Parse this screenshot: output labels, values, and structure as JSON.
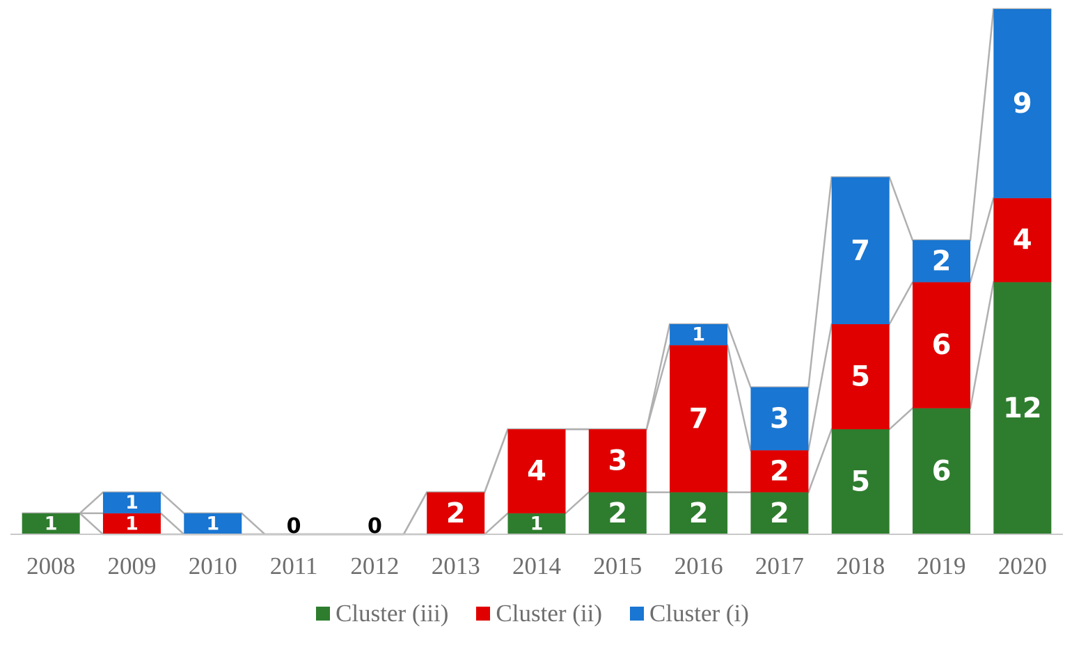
{
  "chart_data": {
    "type": "bar",
    "stacked": true,
    "categories": [
      "2008",
      "2009",
      "2010",
      "2011",
      "2012",
      "2013",
      "2014",
      "2015",
      "2016",
      "2017",
      "2018",
      "2019",
      "2020"
    ],
    "series": [
      {
        "name": "Cluster (iii)",
        "color": "#2e7d2e",
        "values": [
          1,
          0,
          0,
          0,
          0,
          0,
          1,
          2,
          2,
          2,
          5,
          6,
          12
        ]
      },
      {
        "name": "Cluster (ii)",
        "color": "#e00000",
        "values": [
          0,
          1,
          0,
          0,
          0,
          2,
          4,
          3,
          7,
          2,
          5,
          6,
          4
        ]
      },
      {
        "name": "Cluster (i)",
        "color": "#1976d2",
        "values": [
          0,
          1,
          1,
          0,
          0,
          0,
          0,
          0,
          1,
          3,
          7,
          2,
          9
        ]
      }
    ],
    "zero_labels": [
      {
        "category": "2011",
        "label": "0"
      },
      {
        "category": "2012",
        "label": "0"
      }
    ],
    "title": "",
    "xlabel": "",
    "ylabel": "",
    "ylim": [
      0,
      25
    ],
    "grid": false,
    "series_lines": true,
    "legend_position": "bottom"
  }
}
